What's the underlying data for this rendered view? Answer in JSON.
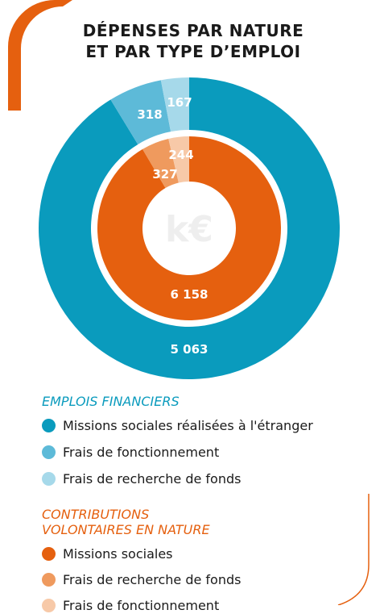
{
  "title_line1": "DÉPENSES PAR NATURE",
  "title_line2": "ET PAR TYPE D’EMPLOI",
  "center_unit": "k€",
  "colors": {
    "teal_dark": "#0a9bbd",
    "teal_mid": "#5dbad8",
    "teal_light": "#a6d9ea",
    "orange_dark": "#e5600f",
    "orange_mid": "#ef9a5e",
    "orange_light": "#f7c9a8",
    "decor_orange": "#e5600f"
  },
  "chart_data": {
    "type": "pie",
    "rings": [
      {
        "name": "EMPLOIS FINANCIERS",
        "slices": [
          {
            "label": "Missions sociales réalisées à l'étranger",
            "value": 5063,
            "display": "5 063",
            "color": "#0a9bbd"
          },
          {
            "label": "Frais de fonctionnement",
            "value": 318,
            "display": "318",
            "color": "#5dbad8"
          },
          {
            "label": "Frais de recherche de fonds",
            "value": 167,
            "display": "167",
            "color": "#a6d9ea"
          }
        ]
      },
      {
        "name": "CONTRIBUTIONS VOLONTAIRES EN NATURE",
        "slices": [
          {
            "label": "Missions sociales",
            "value": 6158,
            "display": "6 158",
            "color": "#e5600f"
          },
          {
            "label": "Frais de recherche de fonds",
            "value": 327,
            "display": "327",
            "color": "#ef9a5e"
          },
          {
            "label": "Frais de fonctionnement",
            "value": 244,
            "display": "244",
            "color": "#f7c9a8"
          }
        ]
      }
    ]
  },
  "legend": {
    "group1_title": "EMPLOIS FINANCIERS",
    "group1_items": [
      {
        "label": "Missions sociales réalisées à l'étranger",
        "color": "#0a9bbd"
      },
      {
        "label": "Frais de fonctionnement",
        "color": "#5dbad8"
      },
      {
        "label": "Frais de recherche de fonds",
        "color": "#a6d9ea"
      }
    ],
    "group2_title_line1": "CONTRIBUTIONS",
    "group2_title_line2": "VOLONTAIRES EN NATURE",
    "group2_items": [
      {
        "label": "Missions sociales",
        "color": "#e5600f"
      },
      {
        "label": "Frais de recherche de fonds",
        "color": "#ef9a5e"
      },
      {
        "label": "Frais de fonctionnement",
        "color": "#f7c9a8"
      }
    ]
  }
}
